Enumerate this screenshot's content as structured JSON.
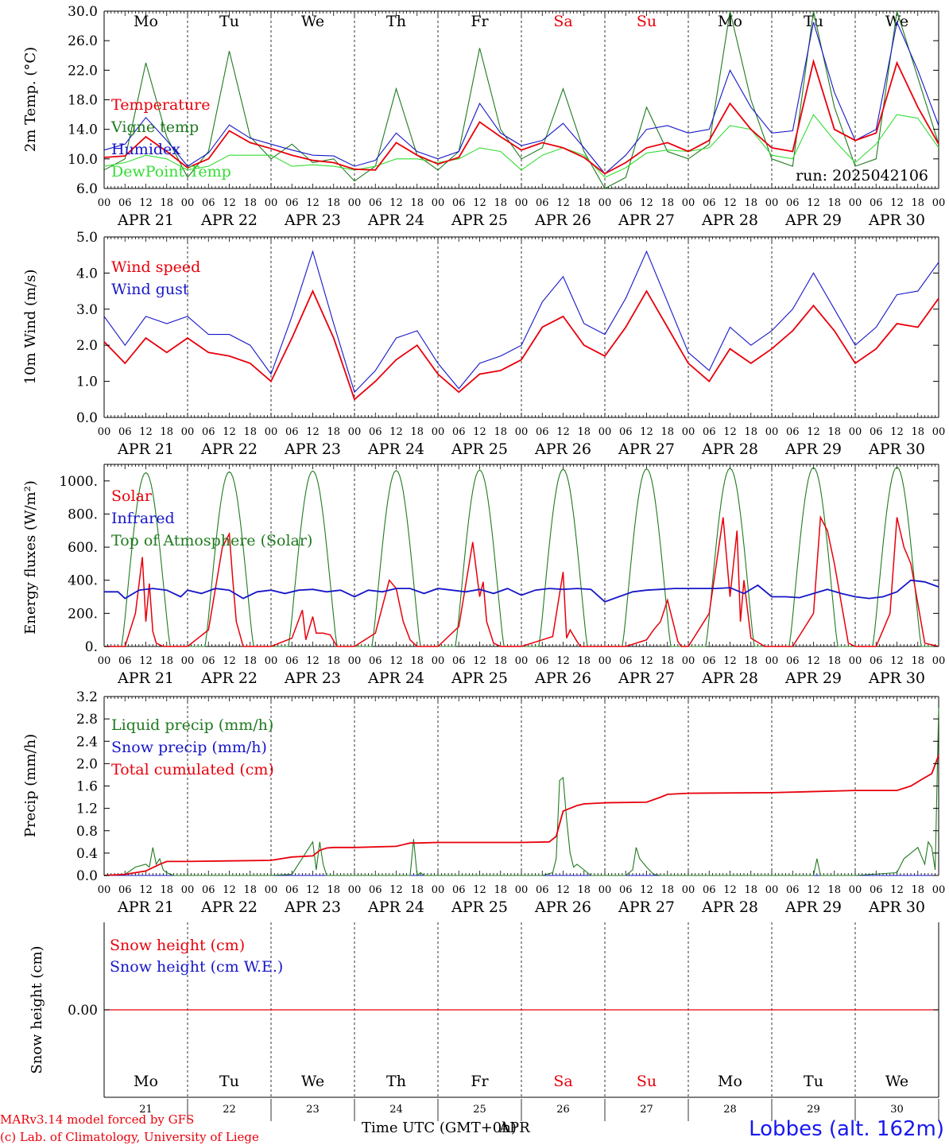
{
  "colors": {
    "red": "#e8000b",
    "green": "#1f7a1f",
    "blue": "#1616c8",
    "lightgreen": "#33dd33",
    "weekend": "#e8000b"
  },
  "days": [
    "Mo",
    "Tu",
    "We",
    "Th",
    "Fr",
    "Sa",
    "Su",
    "Mo",
    "Tu",
    "We"
  ],
  "weekend_days": [
    "Sa",
    "Su"
  ],
  "dates": [
    "APR 21",
    "APR 22",
    "APR 23",
    "APR 24",
    "APR 25",
    "APR 26",
    "APR 27",
    "APR 28",
    "APR 29",
    "APR 30"
  ],
  "hour_ticks": [
    "00",
    "06",
    "12",
    "18"
  ],
  "last_hour_tick": "00",
  "day_numbers": [
    "21",
    "22",
    "23",
    "24",
    "25",
    "26",
    "27",
    "28",
    "29",
    "30"
  ],
  "run_label": "run: 2025042106",
  "footer": {
    "line1": "MARv3.14 model forced by GFS",
    "line2": "(c) Lab. of Climatology, University of Liege",
    "time_label": "Time UTC (GMT+0h)",
    "time_label_overlay": "APR",
    "station": "Lobbes (alt. 162m)"
  },
  "chart_data": [
    {
      "type": "line",
      "ylabel": "2m Temp. (°C)",
      "ylim": [
        6.0,
        30.0
      ],
      "yticks": [
        "6.0",
        "10.0",
        "14.0",
        "18.0",
        "22.0",
        "26.0",
        "30.0"
      ],
      "x_unit": "hours since APR 21 00 UTC",
      "x": [
        0,
        6,
        12,
        18,
        24,
        30,
        36,
        42,
        48,
        54,
        60,
        66,
        72,
        78,
        84,
        90,
        96,
        102,
        108,
        114,
        120,
        126,
        132,
        138,
        144,
        150,
        156,
        162,
        168,
        174,
        180,
        186,
        192,
        198,
        204,
        210,
        216,
        222,
        228,
        234,
        240
      ],
      "series": [
        {
          "name": "Temperature",
          "color": "red",
          "values": [
            10.2,
            10.4,
            13.0,
            11.0,
            8.8,
            10.0,
            13.8,
            12.2,
            11.4,
            10.5,
            9.8,
            9.5,
            8.6,
            8.5,
            12.2,
            10.5,
            9.3,
            10.2,
            15.0,
            13.0,
            11.2,
            12.2,
            11.5,
            10.2,
            8.0,
            9.5,
            11.5,
            12.2,
            11.0,
            12.5,
            17.5,
            14.0,
            11.5,
            11.0,
            23.2,
            14.0,
            12.5,
            13.5,
            23.0,
            17.0,
            12.0
          ]
        },
        {
          "name": "Vigne temp",
          "color": "green",
          "values": [
            8.5,
            10.0,
            23.0,
            13.0,
            7.5,
            11.0,
            24.6,
            13.0,
            10.0,
            12.0,
            9.5,
            10.0,
            7.0,
            9.0,
            19.5,
            10.5,
            8.5,
            11.0,
            25.0,
            14.0,
            10.0,
            11.5,
            19.5,
            11.0,
            4.8,
            7.5,
            17.0,
            11.0,
            10.0,
            12.0,
            30.0,
            18.0,
            10.0,
            9.0,
            30.5,
            17.0,
            9.0,
            10.0,
            30.0,
            21.0,
            12.0
          ]
        },
        {
          "name": "Humidex",
          "color": "blue",
          "values": [
            11.2,
            12.0,
            15.6,
            12.5,
            9.0,
            10.8,
            14.6,
            12.8,
            12.0,
            11.2,
            10.5,
            10.4,
            9.0,
            9.8,
            13.5,
            11.0,
            10.0,
            11.0,
            17.5,
            13.5,
            11.8,
            12.5,
            14.8,
            11.5,
            8.0,
            10.5,
            14.0,
            14.5,
            13.5,
            14.0,
            22.0,
            17.0,
            13.5,
            13.8,
            28.5,
            19.0,
            12.5,
            14.0,
            28.5,
            22.0,
            14.5
          ]
        },
        {
          "name": "DewPoint Temp",
          "color": "lightgreen",
          "values": [
            9.0,
            9.5,
            10.5,
            10.0,
            8.5,
            9.0,
            10.5,
            10.5,
            10.5,
            9.0,
            9.2,
            9.0,
            8.5,
            9.0,
            10.0,
            10.0,
            9.5,
            10.0,
            11.5,
            11.0,
            8.5,
            10.5,
            11.5,
            10.5,
            7.5,
            8.8,
            10.8,
            11.2,
            11.0,
            11.5,
            14.5,
            14.0,
            10.5,
            10.0,
            16.0,
            12.5,
            9.5,
            12.0,
            16.0,
            15.5,
            11.5
          ]
        }
      ]
    },
    {
      "type": "line",
      "ylabel": "10m Wind (m/s)",
      "ylim": [
        0.0,
        5.0
      ],
      "yticks": [
        "0.0",
        "1.0",
        "2.0",
        "3.0",
        "4.0",
        "5.0"
      ],
      "x_unit": "hours since APR 21 00 UTC",
      "x": [
        0,
        6,
        12,
        18,
        24,
        30,
        36,
        42,
        48,
        54,
        60,
        66,
        72,
        78,
        84,
        90,
        96,
        102,
        108,
        114,
        120,
        126,
        132,
        138,
        144,
        150,
        156,
        162,
        168,
        174,
        180,
        186,
        192,
        198,
        204,
        210,
        216,
        222,
        228,
        234,
        240
      ],
      "series": [
        {
          "name": "Wind speed",
          "color": "red",
          "values": [
            2.1,
            1.5,
            2.2,
            1.8,
            2.2,
            1.8,
            1.7,
            1.5,
            1.0,
            2.2,
            3.5,
            2.2,
            0.5,
            1.0,
            1.6,
            2.0,
            1.2,
            0.7,
            1.2,
            1.3,
            1.6,
            2.5,
            2.8,
            2.0,
            1.7,
            2.5,
            3.5,
            2.5,
            1.5,
            1.0,
            1.9,
            1.5,
            1.9,
            2.4,
            3.1,
            2.4,
            1.5,
            1.9,
            2.6,
            2.5,
            3.3
          ]
        },
        {
          "name": "Wind gust",
          "color": "blue",
          "values": [
            2.8,
            2.0,
            2.8,
            2.6,
            2.8,
            2.3,
            2.3,
            2.0,
            1.2,
            2.8,
            4.6,
            2.6,
            0.7,
            1.3,
            2.2,
            2.4,
            1.5,
            0.8,
            1.5,
            1.7,
            2.0,
            3.2,
            3.9,
            2.6,
            2.3,
            3.3,
            4.6,
            3.2,
            1.8,
            1.3,
            2.5,
            2.0,
            2.4,
            3.0,
            4.0,
            3.0,
            2.0,
            2.5,
            3.4,
            3.5,
            4.3
          ]
        }
      ]
    },
    {
      "type": "line",
      "ylabel": "Energy fluxes (W/m²)",
      "ylim": [
        0,
        1100
      ],
      "yticks": [
        "0.",
        "200.",
        "400.",
        "600.",
        "800.",
        "1000."
      ],
      "x_unit": "hours since APR 21 00 UTC",
      "toa_daily_peak": [
        1050,
        1055,
        1060,
        1063,
        1066,
        1070,
        1073,
        1076,
        1080,
        1083
      ],
      "series": [
        {
          "name": "Solar",
          "color": "red",
          "x": [
            0,
            6,
            9,
            11,
            12,
            13,
            14,
            15,
            17,
            19,
            24,
            30,
            34,
            36,
            37,
            38,
            40,
            44,
            48,
            54,
            57,
            58,
            60,
            61,
            63,
            65,
            67,
            72,
            78,
            82,
            84,
            86,
            88,
            90,
            96,
            102,
            106,
            108,
            109,
            110,
            112,
            114,
            120,
            126,
            129,
            132,
            133,
            134,
            136,
            137,
            139,
            144,
            150,
            156,
            158,
            160,
            162,
            165,
            166,
            168,
            174,
            178,
            180,
            182,
            183,
            184,
            186,
            190,
            192,
            198,
            204,
            206,
            208,
            210,
            214,
            216,
            222,
            226,
            228,
            230,
            232,
            236,
            240
          ],
          "values": [
            0,
            0,
            200,
            540,
            150,
            380,
            90,
            20,
            0,
            0,
            0,
            100,
            600,
            680,
            400,
            150,
            0,
            0,
            0,
            50,
            220,
            40,
            180,
            80,
            80,
            70,
            0,
            0,
            80,
            400,
            350,
            150,
            40,
            0,
            0,
            120,
            630,
            300,
            390,
            150,
            20,
            0,
            0,
            40,
            60,
            450,
            50,
            100,
            30,
            0,
            0,
            0,
            0,
            40,
            100,
            150,
            280,
            30,
            0,
            0,
            200,
            780,
            300,
            700,
            150,
            400,
            50,
            0,
            0,
            0,
            200,
            780,
            700,
            500,
            20,
            0,
            0,
            200,
            780,
            600,
            500,
            20,
            0
          ]
        },
        {
          "name": "Infrared",
          "color": "blue",
          "x": [
            0,
            4,
            6,
            10,
            14,
            18,
            22,
            24,
            28,
            32,
            36,
            40,
            44,
            48,
            52,
            56,
            60,
            64,
            68,
            72,
            76,
            80,
            84,
            88,
            92,
            96,
            100,
            104,
            108,
            112,
            116,
            120,
            124,
            128,
            132,
            136,
            140,
            144,
            148,
            152,
            156,
            160,
            164,
            168,
            172,
            176,
            180,
            184,
            188,
            192,
            196,
            200,
            204,
            208,
            212,
            216,
            220,
            224,
            228,
            232,
            236,
            240
          ],
          "values": [
            330,
            330,
            290,
            340,
            350,
            340,
            300,
            340,
            320,
            350,
            340,
            290,
            330,
            340,
            320,
            340,
            345,
            330,
            340,
            300,
            340,
            330,
            350,
            350,
            320,
            350,
            340,
            330,
            345,
            320,
            350,
            310,
            340,
            350,
            345,
            350,
            345,
            270,
            300,
            330,
            340,
            345,
            350,
            350,
            350,
            350,
            355,
            320,
            370,
            300,
            300,
            295,
            320,
            345,
            320,
            300,
            290,
            300,
            330,
            400,
            390,
            360
          ]
        },
        {
          "name": "Top of Atmosphere (Solar)",
          "color": "green",
          "note": "daily bell curve from about 05 to 19 UTC with peak near 12 UTC"
        }
      ]
    },
    {
      "type": "line",
      "ylabel": "Precip (mm/h)",
      "ylim": [
        0.0,
        3.2
      ],
      "yticks": [
        "0.0",
        "0.4",
        "0.8",
        "1.2",
        "1.6",
        "2.0",
        "2.4",
        "2.8",
        "3.2"
      ],
      "x_unit": "hours since APR 21 00 UTC",
      "series": [
        {
          "name": "Liquid precip (mm/h)",
          "color": "green",
          "x": [
            0,
            6,
            9,
            12,
            13,
            14,
            15,
            16,
            17,
            18,
            20,
            24,
            36,
            48,
            54,
            60,
            61,
            62,
            63,
            64,
            66,
            72,
            84,
            88,
            89,
            90,
            91,
            92,
            96,
            120,
            126,
            129,
            130,
            131,
            132,
            133,
            134,
            135,
            136,
            138,
            140,
            144,
            150,
            152,
            153,
            154,
            156,
            158,
            160,
            168,
            180,
            192,
            204,
            205,
            206,
            207,
            208,
            216,
            228,
            230,
            232,
            234,
            236,
            237,
            238,
            239,
            240
          ],
          "values": [
            0,
            0.02,
            0.15,
            0.2,
            0.15,
            0.5,
            0.2,
            0.3,
            0.1,
            0.05,
            0,
            0,
            0,
            0,
            0.02,
            0.6,
            0.1,
            0.6,
            0.2,
            0,
            0,
            0,
            0,
            0,
            0.65,
            0,
            0.05,
            0,
            0,
            0,
            0,
            0.05,
            0.3,
            1.7,
            1.75,
            1.0,
            0.4,
            0.15,
            0.2,
            0.1,
            0,
            0,
            0,
            0.1,
            0.5,
            0.3,
            0.15,
            0.02,
            0,
            0,
            0,
            0,
            0,
            0.3,
            0,
            0,
            0,
            0,
            0.05,
            0.3,
            0.4,
            0.5,
            0.2,
            0.6,
            0.5,
            0.1,
            3.0
          ]
        },
        {
          "name": "Snow precip (mm/h)",
          "color": "blue",
          "x": [
            0,
            240
          ],
          "values": [
            0,
            0
          ]
        },
        {
          "name": "Total cumulated (cm)",
          "color": "red",
          "x": [
            0,
            6,
            12,
            16,
            18,
            24,
            36,
            48,
            54,
            60,
            62,
            64,
            66,
            72,
            84,
            88,
            90,
            96,
            120,
            128,
            130,
            132,
            134,
            136,
            138,
            144,
            156,
            160,
            162,
            168,
            192,
            216,
            228,
            232,
            236,
            238,
            240
          ],
          "values": [
            0,
            0.02,
            0.08,
            0.2,
            0.25,
            0.25,
            0.26,
            0.27,
            0.33,
            0.35,
            0.45,
            0.49,
            0.5,
            0.5,
            0.52,
            0.58,
            0.58,
            0.59,
            0.59,
            0.6,
            0.7,
            1.15,
            1.2,
            1.25,
            1.28,
            1.3,
            1.31,
            1.4,
            1.45,
            1.47,
            1.48,
            1.52,
            1.52,
            1.6,
            1.75,
            1.82,
            2.15
          ]
        }
      ]
    },
    {
      "type": "line",
      "ylabel": "Snow height (cm)",
      "yticks": [
        "0.00"
      ],
      "x_unit": "hours since APR 21 00 UTC",
      "series": [
        {
          "name": "Snow height (cm)",
          "color": "red",
          "x": [
            0,
            240
          ],
          "values": [
            0,
            0
          ]
        },
        {
          "name": "Snow height (cm W.E.)",
          "color": "blue",
          "x": [
            0,
            240
          ],
          "values": [
            0,
            0
          ]
        }
      ]
    }
  ]
}
